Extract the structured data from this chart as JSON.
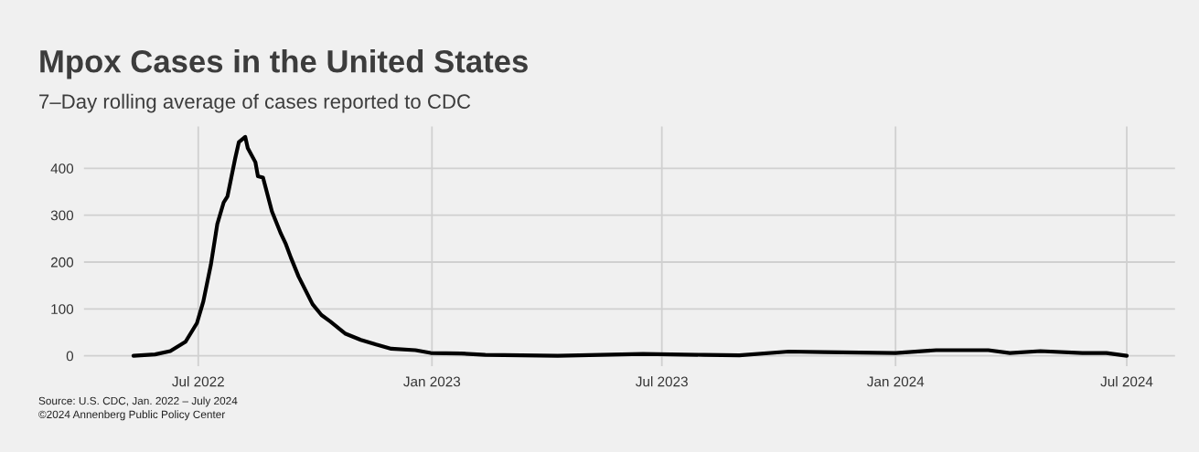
{
  "chart_data": {
    "type": "line",
    "title": "Mpox Cases in the United States",
    "subtitle": "7–Day rolling average of cases reported to CDC",
    "annotations": [
      "Source: U.S. CDC, Jan. 2022 – July 2024",
      "©2024 Annenberg Public Policy Center"
    ],
    "x": [
      "2022-05-11",
      "2022-05-28",
      "2022-06-09",
      "2022-06-21",
      "2022-06-30",
      "2022-07-05",
      "2022-07-11",
      "2022-07-16",
      "2022-07-21",
      "2022-07-24",
      "2022-07-30",
      "2022-08-02",
      "2022-08-07",
      "2022-08-09",
      "2022-08-15",
      "2022-08-17",
      "2022-08-21",
      "2022-08-28",
      "2022-09-04",
      "2022-09-08",
      "2022-09-12",
      "2022-09-18",
      "2022-09-29",
      "2022-10-06",
      "2022-10-13",
      "2022-10-25",
      "2022-11-06",
      "2022-11-18",
      "2022-11-30",
      "2022-12-19",
      "2022-12-31",
      "2023-01-24",
      "2023-02-12",
      "2023-04-10",
      "2023-06-16",
      "2023-08-03",
      "2023-08-31",
      "2023-10-09",
      "2023-11-06",
      "2024-01-01",
      "2024-02-02",
      "2024-03-14",
      "2024-03-31",
      "2024-04-24",
      "2024-05-27",
      "2024-06-15",
      "2024-07-01"
    ],
    "series": [
      {
        "color": "#000000",
        "values": [
          0,
          3,
          10,
          30,
          70,
          116,
          195,
          281,
          327,
          340,
          420,
          456,
          467,
          443,
          413,
          383,
          380,
          308,
          261,
          238,
          209,
          169,
          110,
          87,
          73,
          47,
          34,
          24,
          15,
          12,
          6,
          5,
          2,
          0,
          4,
          2,
          1,
          9,
          8,
          6,
          12,
          12,
          6,
          10,
          6,
          6,
          0
        ]
      }
    ],
    "xlim": [
      "2022-04-02",
      "2024-08-08"
    ],
    "xticks": [
      {
        "value": "2022-07-01",
        "label": "Jul 2022"
      },
      {
        "value": "2023-01-01",
        "label": "Jan 2023"
      },
      {
        "value": "2023-07-01",
        "label": "Jul 2023"
      },
      {
        "value": "2024-01-01",
        "label": "Jan 2024"
      },
      {
        "value": "2024-07-01",
        "label": "Jul 2024"
      }
    ],
    "ylim": [
      -22,
      489
    ],
    "yticks": [
      0,
      100,
      200,
      300,
      400
    ],
    "grid": true,
    "legend": false,
    "line_style": "solid",
    "marker": "none"
  }
}
